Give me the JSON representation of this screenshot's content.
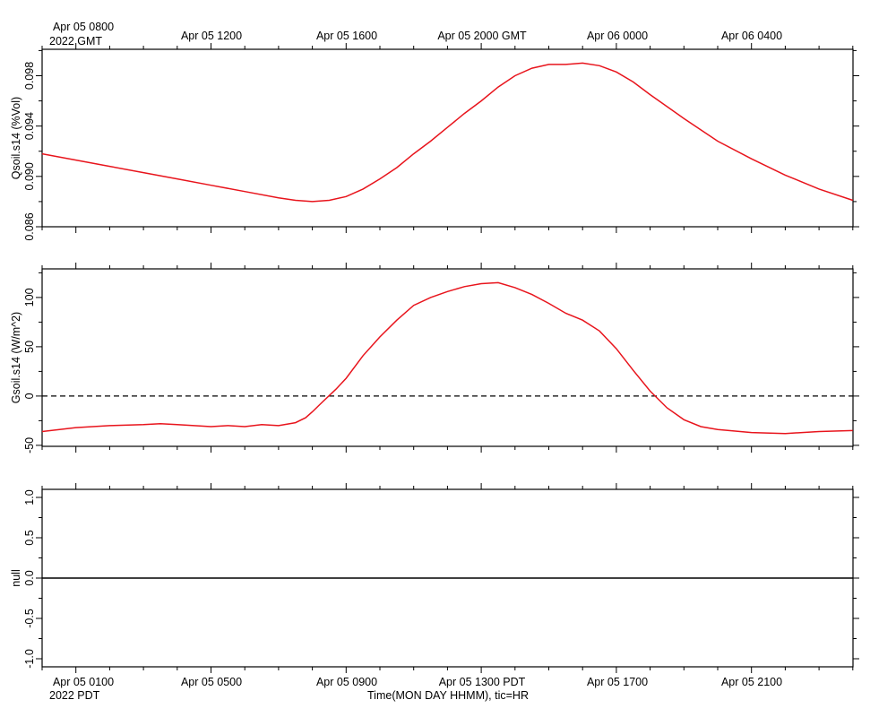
{
  "top_axis": {
    "labels": [
      "Apr 05 0800",
      "Apr 05 1200",
      "Apr 05 1600",
      "Apr 05 2000 GMT",
      "Apr 06 0000",
      "Apr 06 0400"
    ],
    "year_label": "2022 GMT"
  },
  "bottom_axis": {
    "labels": [
      "Apr 05 0100",
      "Apr 05 0500",
      "Apr 05 0900",
      "Apr 05 1300 PDT",
      "Apr 05 1700",
      "Apr 05 2100"
    ],
    "year_label": "2022 PDT",
    "title": "Time(MON DAY HHMM), tic=HR"
  },
  "colors": {
    "series": "#e8141c",
    "axis": "#000000",
    "zero_line": "#000000"
  },
  "chart_data": [
    {
      "type": "line",
      "ylabel": "Qsoil.s14 (%Vol)",
      "ylim": [
        0.086,
        0.1001
      ],
      "yticks": [
        "0.086",
        "0.090",
        "0.094",
        "0.098"
      ],
      "xlim_pdt_hours": [
        0.0,
        24.0
      ],
      "series": [
        {
          "x": [
            0,
            1,
            2,
            3,
            4,
            5,
            6,
            7,
            7.5,
            8,
            8.5,
            9,
            9.5,
            10,
            10.5,
            11,
            11.5,
            12,
            12.5,
            13,
            13.5,
            14,
            14.5,
            15,
            15.5,
            16,
            16.5,
            17,
            17.5,
            18,
            19,
            20,
            21,
            22,
            23,
            24
          ],
          "values": [
            0.0918,
            0.0913,
            0.0908,
            0.0903,
            0.0898,
            0.0893,
            0.0888,
            0.0883,
            0.0881,
            0.088,
            0.0881,
            0.0884,
            0.089,
            0.0898,
            0.0907,
            0.0918,
            0.0928,
            0.0939,
            0.095,
            0.096,
            0.0971,
            0.098,
            0.0986,
            0.0989,
            0.0989,
            0.099,
            0.0988,
            0.0983,
            0.0975,
            0.0965,
            0.0946,
            0.0928,
            0.0914,
            0.0901,
            0.089,
            0.0881
          ]
        }
      ]
    },
    {
      "type": "line",
      "ylabel": "Gsoil.s14 (W/m^2)",
      "ylim": [
        -51,
        129
      ],
      "yticks": [
        "-50",
        "0",
        "50",
        "100"
      ],
      "reference_line": 0,
      "xlim_pdt_hours": [
        0.0,
        24.0
      ],
      "series": [
        {
          "x": [
            0,
            1,
            2,
            3,
            3.5,
            4,
            4.5,
            5,
            5.5,
            6,
            6.5,
            7,
            7.5,
            7.8,
            8,
            8.3,
            8.7,
            9,
            9.5,
            10,
            10.5,
            11,
            11.5,
            12,
            12.5,
            13,
            13.5,
            14,
            14.5,
            15,
            15.5,
            16,
            16.5,
            17,
            17.5,
            18,
            18.5,
            19,
            19.5,
            20,
            21,
            22,
            23,
            24
          ],
          "values": [
            -36,
            -32,
            -30,
            -29,
            -28,
            -29,
            -30,
            -31,
            -30,
            -31,
            -29,
            -30,
            -27,
            -22,
            -16,
            -6,
            7,
            18,
            41,
            60,
            77,
            92,
            100,
            106,
            111,
            114,
            115,
            110,
            103,
            94,
            84,
            77,
            66,
            48,
            26,
            5,
            -12,
            -24,
            -31,
            -34,
            -37,
            -38,
            -36,
            -35
          ]
        }
      ]
    },
    {
      "type": "line",
      "ylabel": "null",
      "ylim": [
        -1.1,
        1.1
      ],
      "yticks": [
        "-1.0",
        "-0.5",
        "0.0",
        "0.5",
        "1.0"
      ],
      "xlim_pdt_hours": [
        0.0,
        24.0
      ],
      "series": [
        {
          "x": [
            0,
            24
          ],
          "values": [
            0,
            0
          ]
        }
      ]
    }
  ]
}
